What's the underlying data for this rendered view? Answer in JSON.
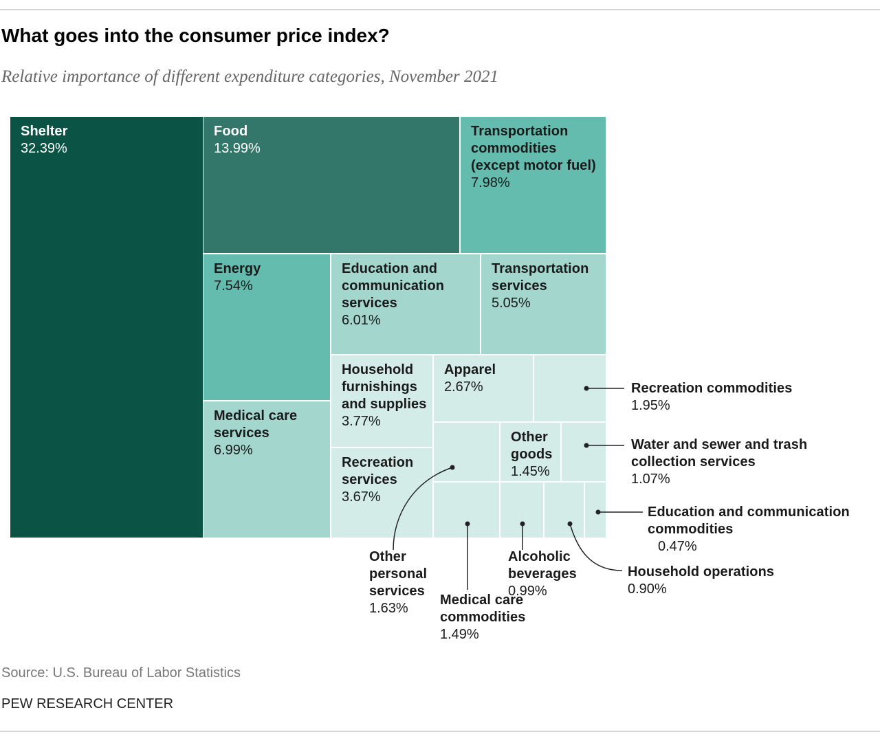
{
  "chart_data": {
    "type": "treemap",
    "title": "What goes into the consumer price index?",
    "subtitle": "Relative importance of different expenditure categories, November 2021",
    "categories": [
      "Shelter",
      "Food",
      "Transportation commodities (except motor fuel)",
      "Energy",
      "Medical care services",
      "Education and communication services",
      "Transportation services",
      "Household furnishings and supplies",
      "Recreation services",
      "Apparel",
      "Recreation commodities",
      "Other personal services",
      "Other goods",
      "Water and sewer and trash collection services",
      "Medical care commodities",
      "Alcoholic beverages",
      "Household operations",
      "Education and communication commodities"
    ],
    "values": [
      32.39,
      13.99,
      7.98,
      7.54,
      6.99,
      6.01,
      5.05,
      3.77,
      3.67,
      2.67,
      1.95,
      1.63,
      1.45,
      1.07,
      1.49,
      0.99,
      0.9,
      0.47
    ],
    "value_labels": [
      "32.39%",
      "13.99%",
      "7.98%",
      "7.54%",
      "6.99%",
      "6.01%",
      "5.05%",
      "3.77%",
      "3.67%",
      "2.67%",
      "1.95%",
      "1.63%",
      "1.45%",
      "1.07%",
      "1.49%",
      "0.99%",
      "0.90%",
      "0.47%"
    ],
    "colors": [
      "#0b5344",
      "#33776a",
      "#64bcae",
      "#64bcae",
      "#a3d6cc",
      "#a3d6cc",
      "#a3d6cc",
      "#d3ece7",
      "#d3ece7",
      "#d3ece7",
      "#d3ece7",
      "#d3ece7",
      "#d3ece7",
      "#d3ece7",
      "#d3ece7",
      "#d3ece7",
      "#d3ece7",
      "#d3ece7"
    ],
    "source": "Source: U.S. Bureau of Labor Statistics",
    "credit": "PEW RESEARCH CENTER"
  }
}
